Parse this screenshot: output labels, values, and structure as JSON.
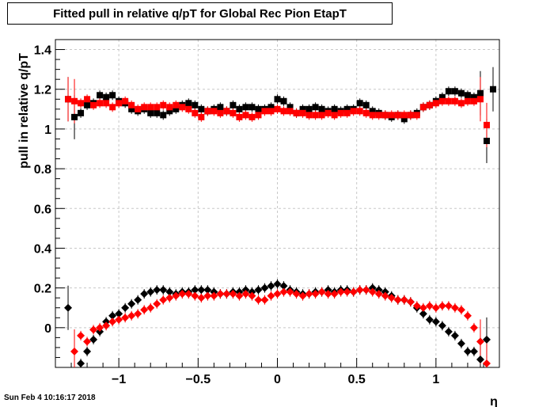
{
  "title": "Fitted pull in relative q/pT for Global Rec Pion EtapT",
  "timestamp": "Sun Feb  4 10:16:17 2018",
  "colors": {
    "black_series": "#000000",
    "red_series": "#ff0000",
    "grid": "#c8c8c8"
  },
  "chart_data": {
    "type": "scatter",
    "title": "Fitted pull in relative q/pT for Global Rec Pion EtapT",
    "xlabel": "η",
    "ylabel": "pull in relative q/pT",
    "xlim": [
      -1.4,
      1.4
    ],
    "ylim": [
      -0.2,
      1.45
    ],
    "grid": true,
    "x_ticks": [
      -1,
      -0.5,
      0,
      0.5,
      1
    ],
    "x_tick_labels": [
      "−1",
      "−0.5",
      "0",
      "0.5",
      "1"
    ],
    "y_ticks": [
      0,
      0.2,
      0.4,
      0.6,
      0.8,
      1,
      1.2,
      1.4
    ],
    "y_tick_labels": [
      "0",
      "0.2",
      "0.4",
      "0.6",
      "0.8",
      "1",
      "1.2",
      "1.4"
    ],
    "x": [
      -1.32,
      -1.28,
      -1.24,
      -1.2,
      -1.16,
      -1.12,
      -1.08,
      -1.04,
      -1.0,
      -0.96,
      -0.92,
      -0.88,
      -0.84,
      -0.8,
      -0.76,
      -0.72,
      -0.68,
      -0.64,
      -0.6,
      -0.56,
      -0.52,
      -0.48,
      -0.44,
      -0.4,
      -0.36,
      -0.32,
      -0.28,
      -0.24,
      -0.2,
      -0.16,
      -0.12,
      -0.08,
      -0.04,
      0.0,
      0.04,
      0.08,
      0.12,
      0.16,
      0.2,
      0.24,
      0.28,
      0.32,
      0.36,
      0.4,
      0.44,
      0.48,
      0.52,
      0.56,
      0.6,
      0.64,
      0.68,
      0.72,
      0.76,
      0.8,
      0.84,
      0.88,
      0.92,
      0.96,
      1.0,
      1.04,
      1.08,
      1.12,
      1.16,
      1.2,
      1.24,
      1.28,
      1.32,
      1.36
    ],
    "series": [
      {
        "marker": "square",
        "color": "#000000",
        "values": [
          1.15,
          1.06,
          1.08,
          1.12,
          1.13,
          1.17,
          1.16,
          1.17,
          1.14,
          1.13,
          1.1,
          1.09,
          1.1,
          1.08,
          1.08,
          1.07,
          1.09,
          1.1,
          1.12,
          1.13,
          1.12,
          1.1,
          1.09,
          1.1,
          1.11,
          1.09,
          1.12,
          1.1,
          1.11,
          1.11,
          1.1,
          1.1,
          1.11,
          1.15,
          1.14,
          1.11,
          1.08,
          1.1,
          1.1,
          1.11,
          1.1,
          1.09,
          1.1,
          1.09,
          1.1,
          1.1,
          1.13,
          1.12,
          1.09,
          1.08,
          1.07,
          1.06,
          1.07,
          1.05,
          1.07,
          1.08,
          1.11,
          1.12,
          1.14,
          1.16,
          1.19,
          1.19,
          1.18,
          1.17,
          1.16,
          1.18,
          0.94,
          1.2
        ]
      },
      {
        "marker": "square",
        "color": "#ff0000",
        "values": [
          1.15,
          1.14,
          1.13,
          1.15,
          1.12,
          1.13,
          1.13,
          1.11,
          1.13,
          1.14,
          1.12,
          1.1,
          1.11,
          1.11,
          1.11,
          1.12,
          1.11,
          1.12,
          1.11,
          1.1,
          1.08,
          1.06,
          1.09,
          1.09,
          1.08,
          1.09,
          1.08,
          1.06,
          1.07,
          1.06,
          1.07,
          1.09,
          1.09,
          1.1,
          1.09,
          1.09,
          1.08,
          1.08,
          1.07,
          1.07,
          1.07,
          1.08,
          1.07,
          1.08,
          1.08,
          1.09,
          1.09,
          1.08,
          1.07,
          1.07,
          1.07,
          1.07,
          1.07,
          1.07,
          1.07,
          1.07,
          1.11,
          1.12,
          1.13,
          1.14,
          1.14,
          1.14,
          1.13,
          1.14,
          1.14,
          1.15,
          1.02,
          null
        ]
      },
      {
        "marker": "diamond",
        "color": "#000000",
        "values": [
          0.1,
          null,
          -0.18,
          -0.12,
          -0.06,
          -0.02,
          0.03,
          0.06,
          0.07,
          0.1,
          0.12,
          0.14,
          0.17,
          0.18,
          0.19,
          0.19,
          0.18,
          0.17,
          0.18,
          0.18,
          0.19,
          0.19,
          0.19,
          0.18,
          0.17,
          0.17,
          0.18,
          0.18,
          0.19,
          0.18,
          0.19,
          0.2,
          0.21,
          0.22,
          0.21,
          0.19,
          0.18,
          0.17,
          0.17,
          0.18,
          0.18,
          0.19,
          0.18,
          0.19,
          0.19,
          0.18,
          0.19,
          0.19,
          0.2,
          0.19,
          0.18,
          0.16,
          0.14,
          0.14,
          0.13,
          0.1,
          0.07,
          0.04,
          0.03,
          0.01,
          -0.02,
          -0.04,
          -0.08,
          -0.12,
          -0.12,
          -0.16,
          -0.06,
          null
        ]
      },
      {
        "marker": "diamond",
        "color": "#ff0000",
        "values": [
          null,
          -0.12,
          -0.04,
          -0.07,
          -0.01,
          0.0,
          0.01,
          0.03,
          0.04,
          0.05,
          0.06,
          0.07,
          0.09,
          0.1,
          0.12,
          0.14,
          0.15,
          0.16,
          0.17,
          0.17,
          0.16,
          0.15,
          0.16,
          0.16,
          0.17,
          0.17,
          0.17,
          0.16,
          0.17,
          0.16,
          0.14,
          0.14,
          0.16,
          0.17,
          0.18,
          0.18,
          0.17,
          0.16,
          0.17,
          0.17,
          0.18,
          0.17,
          0.17,
          0.18,
          0.18,
          0.18,
          0.19,
          0.19,
          0.18,
          0.17,
          0.16,
          0.15,
          0.14,
          0.14,
          0.13,
          0.11,
          0.1,
          0.11,
          0.1,
          0.11,
          0.11,
          0.1,
          0.09,
          0.06,
          0.0,
          -0.07,
          -0.18,
          null
        ]
      }
    ]
  }
}
